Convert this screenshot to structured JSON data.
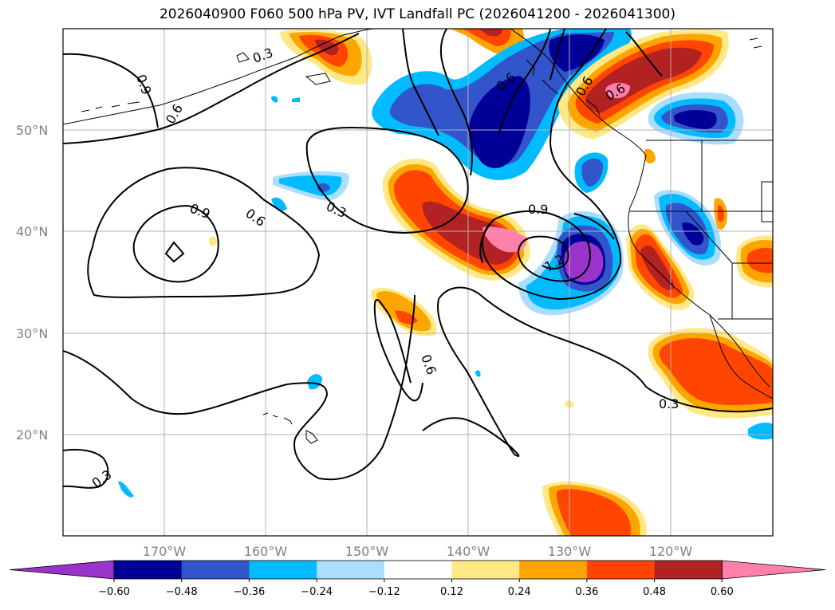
{
  "title": "2026040900 F060 500 hPa PV, IVT Landfall PC (2026041200 - 2026041300)",
  "map": {
    "lon_range": [
      -180,
      -110
    ],
    "lat_range": [
      10,
      60
    ],
    "lat_ticks": [
      "50°N",
      "40°N",
      "30°N",
      "20°N"
    ],
    "lon_ticks": [
      "170°W",
      "160°W",
      "150°W",
      "140°W",
      "130°W",
      "120°W"
    ],
    "contour_labels": [
      "0.3",
      "0.9",
      "0.6",
      "0.9",
      "0.6",
      "0.3",
      "0.6",
      "0.9",
      "0.6",
      "1.2",
      "0.6",
      "0.3",
      "0.3",
      "0.6"
    ]
  },
  "colorbar": {
    "colors": [
      "#9933cc",
      "#000099",
      "#3355cc",
      "#00bbff",
      "#aaddff",
      "#ffffff",
      "#ffe885",
      "#ffa500",
      "#ff4500",
      "#b22222",
      "#ff80aa"
    ],
    "tick_labels": [
      "−0.60",
      "−0.48",
      "−0.36",
      "−0.24",
      "−0.12",
      "0.12",
      "0.24",
      "0.36",
      "0.48",
      "0.60"
    ]
  }
}
